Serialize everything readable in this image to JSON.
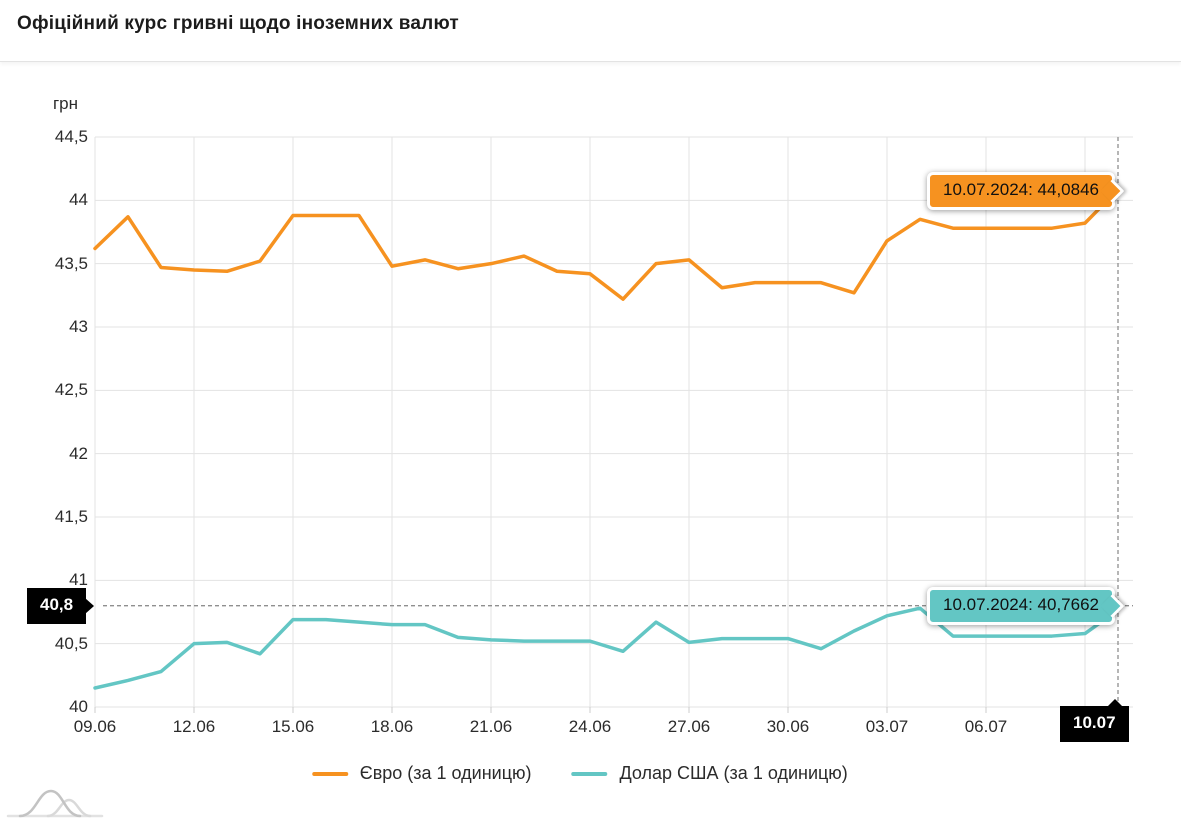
{
  "header": {
    "title": "Офіційний курс гривні щодо іноземних валют"
  },
  "axis": {
    "unit_label": "грн",
    "ytick_labels": [
      "44,5",
      "44",
      "43,5",
      "43",
      "42,5",
      "42",
      "41,5",
      "41",
      "40,5",
      "40"
    ],
    "xtick_labels": [
      "09.06",
      "12.06",
      "15.06",
      "18.06",
      "21.06",
      "24.06",
      "27.06",
      "30.06",
      "03.07",
      "06.07",
      "09.07"
    ]
  },
  "chart_data": {
    "type": "line",
    "title": "Офіційний курс гривні щодо іноземних валют",
    "xlabel": "",
    "ylabel": "грн",
    "ylim": [
      40,
      44.5
    ],
    "ytick_step": 0.5,
    "grid": true,
    "legend_position": "bottom",
    "x": [
      "09.06",
      "10.06",
      "11.06",
      "12.06",
      "13.06",
      "14.06",
      "15.06",
      "16.06",
      "17.06",
      "18.06",
      "19.06",
      "20.06",
      "21.06",
      "22.06",
      "23.06",
      "24.06",
      "25.06",
      "26.06",
      "27.06",
      "28.06",
      "29.06",
      "30.06",
      "01.07",
      "02.07",
      "03.07",
      "04.07",
      "05.07",
      "06.07",
      "07.07",
      "08.07",
      "09.07",
      "10.07"
    ],
    "series": [
      {
        "name": "Євро (за 1 одиницю)",
        "color": "#f69220",
        "values": [
          43.62,
          43.87,
          43.47,
          43.45,
          43.44,
          43.52,
          43.88,
          43.88,
          43.88,
          43.48,
          43.53,
          43.46,
          43.5,
          43.56,
          43.44,
          43.42,
          43.22,
          43.5,
          43.53,
          43.31,
          43.35,
          43.35,
          43.35,
          43.27,
          43.68,
          43.85,
          43.78,
          43.78,
          43.78,
          43.78,
          43.82,
          44.0846
        ]
      },
      {
        "name": "Долар США (за 1 одиницю)",
        "color": "#63c6c4",
        "values": [
          40.15,
          40.21,
          40.28,
          40.5,
          40.51,
          40.42,
          40.69,
          40.69,
          40.67,
          40.65,
          40.65,
          40.55,
          40.53,
          40.52,
          40.52,
          40.52,
          40.44,
          40.67,
          40.51,
          40.54,
          40.54,
          40.54,
          40.46,
          40.6,
          40.72,
          40.78,
          40.56,
          40.56,
          40.56,
          40.56,
          40.58,
          40.7662
        ]
      }
    ],
    "annotations": {
      "euro_tooltip": "10.07.2024: 44,0846",
      "dollar_tooltip": "10.07.2024: 40,7662",
      "y_axis_marker": "40,8",
      "x_axis_marker": "10.07",
      "crosshair_value": 40.8,
      "crosshair_date": "10.07"
    }
  },
  "colors": {
    "euro": "#f69220",
    "dollar": "#63c6c4",
    "grid": "#e3e3e3",
    "dashed": "#8f8f8f",
    "marker_bg": "#000000"
  }
}
